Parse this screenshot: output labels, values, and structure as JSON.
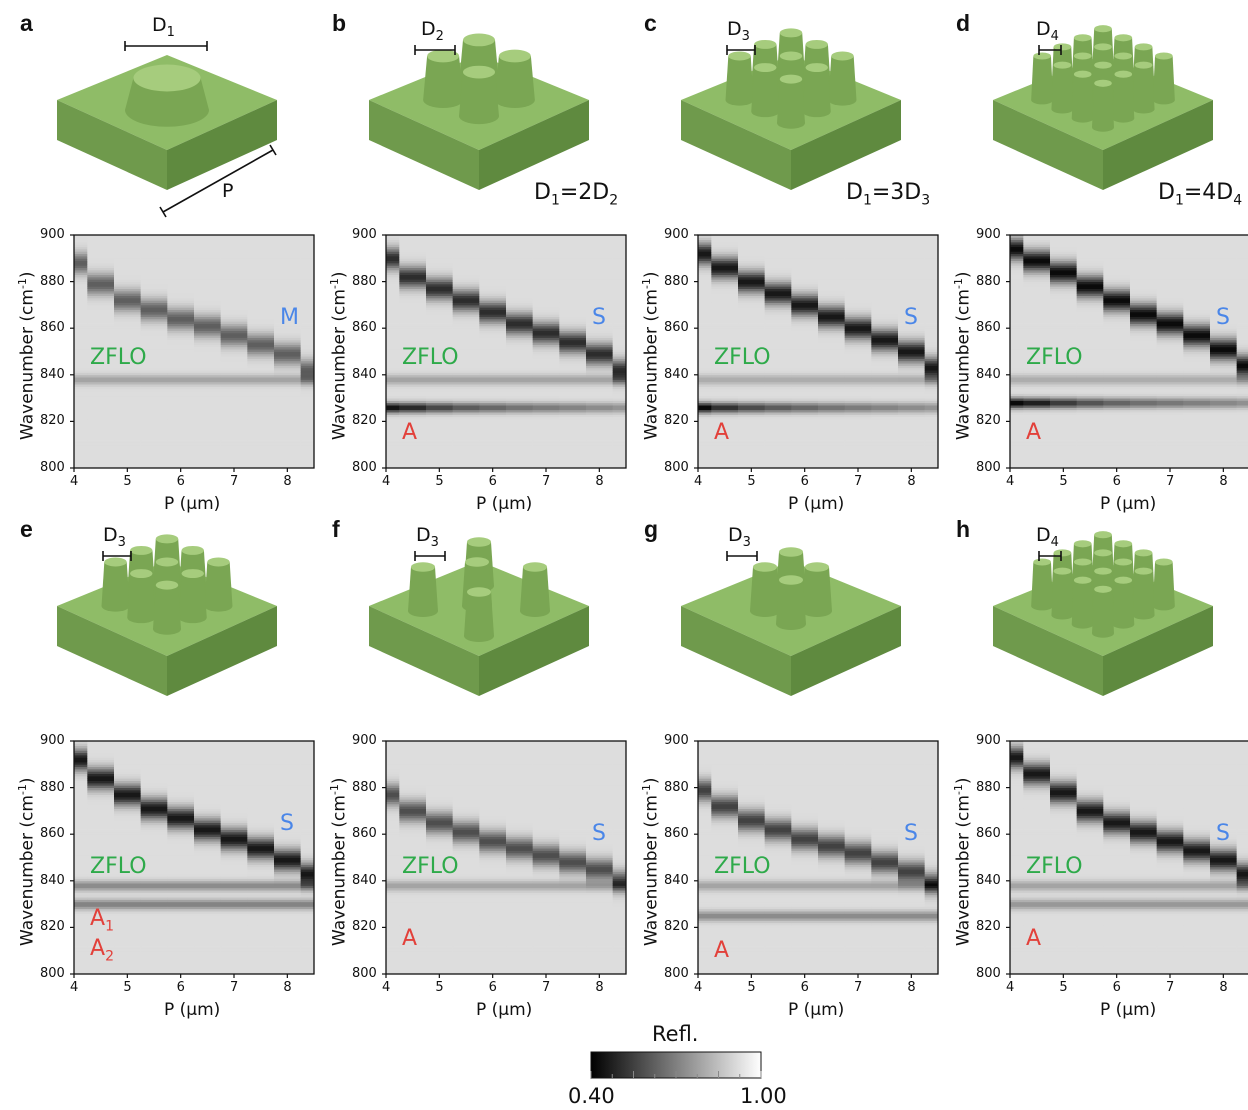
{
  "colors": {
    "substrate": "#7ea55a",
    "pillar": "#8db866",
    "mode_green": "#2eaa4a",
    "mode_red": "#e2403a",
    "mode_blue": "#4a86e8"
  },
  "colorbar": {
    "title": "Refl.",
    "min_label": "0.40",
    "max_label": "1.00",
    "min": 0.4,
    "max": 1.0
  },
  "panels": [
    {
      "letter": "a",
      "d_label": [
        "D",
        "1"
      ],
      "ratio": null,
      "mode_labels": [
        {
          "text": "ZFLO",
          "color": "green"
        },
        {
          "text": "M",
          "color": "blue"
        }
      ]
    },
    {
      "letter": "b",
      "d_label": [
        "D",
        "2"
      ],
      "ratio": [
        "D",
        "1",
        "=2D",
        "2"
      ],
      "mode_labels": [
        {
          "text": "ZFLO",
          "color": "green"
        },
        {
          "text": "S",
          "color": "blue"
        },
        {
          "text": "A",
          "color": "red"
        }
      ]
    },
    {
      "letter": "c",
      "d_label": [
        "D",
        "3"
      ],
      "ratio": [
        "D",
        "1",
        "=3D",
        "3"
      ],
      "mode_labels": [
        {
          "text": "ZFLO",
          "color": "green"
        },
        {
          "text": "S",
          "color": "blue"
        },
        {
          "text": "A",
          "color": "red"
        }
      ]
    },
    {
      "letter": "d",
      "d_label": [
        "D",
        "4"
      ],
      "ratio": [
        "D",
        "1",
        "=4D",
        "4"
      ],
      "mode_labels": [
        {
          "text": "ZFLO",
          "color": "green"
        },
        {
          "text": "S",
          "color": "blue"
        },
        {
          "text": "A",
          "color": "red"
        }
      ]
    },
    {
      "letter": "e",
      "d_label": [
        "D",
        "3"
      ],
      "ratio": null,
      "mode_labels": [
        {
          "text": "ZFLO",
          "color": "green"
        },
        {
          "text": "S",
          "color": "blue"
        },
        {
          "text": "A",
          "sub": "1",
          "color": "red"
        },
        {
          "text": "A",
          "sub": "2",
          "color": "red"
        }
      ]
    },
    {
      "letter": "f",
      "d_label": [
        "D",
        "3"
      ],
      "ratio": null,
      "mode_labels": [
        {
          "text": "ZFLO",
          "color": "green"
        },
        {
          "text": "S",
          "color": "blue"
        },
        {
          "text": "A",
          "color": "red"
        }
      ]
    },
    {
      "letter": "g",
      "d_label": [
        "D",
        "3"
      ],
      "ratio": null,
      "mode_labels": [
        {
          "text": "ZFLO",
          "color": "green"
        },
        {
          "text": "S",
          "color": "blue"
        },
        {
          "text": "A",
          "color": "red"
        }
      ]
    },
    {
      "letter": "h",
      "d_label": [
        "D",
        "4"
      ],
      "ratio": null,
      "mode_labels": [
        {
          "text": "ZFLO",
          "color": "green"
        },
        {
          "text": "S",
          "color": "blue"
        },
        {
          "text": "A",
          "color": "red"
        }
      ]
    }
  ],
  "schematic_a_period_label": "P",
  "chart_data": [
    {
      "panel": "a",
      "type": "heatmap",
      "xlabel": "P (μm)",
      "ylabel": "Wavenumber (cm⁻¹)",
      "xlim": [
        4,
        8.5
      ],
      "ylim": [
        800,
        900
      ],
      "xticks": [
        "4",
        "5",
        "6",
        "7",
        "8"
      ],
      "yticks": [
        "800",
        "820",
        "840",
        "860",
        "880",
        "900"
      ],
      "P": [
        4.0,
        4.5,
        5.0,
        5.5,
        6.0,
        6.5,
        7.0,
        7.5,
        8.0,
        8.5
      ],
      "modes": {
        "surface_M": {
          "wavenumber": [
            888,
            879,
            872,
            868,
            864,
            861,
            857,
            853,
            849,
            842
          ],
          "min_refl": 0.62
        },
        "ZFLO": {
          "wavenumber": 838,
          "min_refl": 0.78
        },
        "A": null
      }
    },
    {
      "panel": "b",
      "type": "heatmap",
      "xlabel": "P (μm)",
      "ylabel": "Wavenumber (cm⁻¹)",
      "xlim": [
        4,
        8.5
      ],
      "ylim": [
        800,
        900
      ],
      "xticks": [
        "4",
        "5",
        "6",
        "7",
        "8"
      ],
      "yticks": [
        "800",
        "820",
        "840",
        "860",
        "880",
        "900"
      ],
      "P": [
        4.0,
        4.5,
        5.0,
        5.5,
        6.0,
        6.5,
        7.0,
        7.5,
        8.0,
        8.5
      ],
      "modes": {
        "surface_S": {
          "wavenumber": [
            890,
            882,
            877,
            872,
            867,
            862,
            858,
            854,
            849,
            842
          ],
          "min_refl": 0.5
        },
        "ZFLO": {
          "wavenumber": 838,
          "min_refl": 0.78
        },
        "A": {
          "wavenumber": 826,
          "min_refl": [
            0.42,
            0.48,
            0.55,
            0.6,
            0.63,
            0.66,
            0.68,
            0.7,
            0.72,
            0.74
          ]
        }
      }
    },
    {
      "panel": "c",
      "type": "heatmap",
      "xlabel": "P (μm)",
      "ylabel": "Wavenumber (cm⁻¹)",
      "xlim": [
        4,
        8.5
      ],
      "ylim": [
        800,
        900
      ],
      "xticks": [
        "4",
        "5",
        "6",
        "7",
        "8"
      ],
      "yticks": [
        "800",
        "820",
        "840",
        "860",
        "880",
        "900"
      ],
      "P": [
        4.0,
        4.5,
        5.0,
        5.5,
        6.0,
        6.5,
        7.0,
        7.5,
        8.0,
        8.5
      ],
      "modes": {
        "surface_S": {
          "wavenumber": [
            892,
            886,
            880,
            875,
            870,
            865,
            860,
            855,
            850,
            843
          ],
          "min_refl": 0.45
        },
        "ZFLO": {
          "wavenumber": 838,
          "min_refl": 0.8
        },
        "A": {
          "wavenumber": 826,
          "min_refl": [
            0.4,
            0.5,
            0.56,
            0.6,
            0.63,
            0.66,
            0.68,
            0.7,
            0.72,
            0.74
          ]
        }
      }
    },
    {
      "panel": "d",
      "type": "heatmap",
      "xlabel": "P (μm)",
      "ylabel": "Wavenumber (cm⁻¹)",
      "xlim": [
        4,
        8.5
      ],
      "ylim": [
        800,
        900
      ],
      "xticks": [
        "4",
        "5",
        "6",
        "7",
        "8"
      ],
      "yticks": [
        "800",
        "820",
        "840",
        "860",
        "880",
        "900"
      ],
      "P": [
        4.0,
        4.5,
        5.0,
        5.5,
        6.0,
        6.5,
        7.0,
        7.5,
        8.0,
        8.5
      ],
      "modes": {
        "surface_S": {
          "wavenumber": [
            894,
            889,
            884,
            878,
            872,
            866,
            862,
            857,
            851,
            844
          ],
          "min_refl": 0.42
        },
        "ZFLO": {
          "wavenumber": 838,
          "min_refl": 0.8
        },
        "A": {
          "wavenumber": 828,
          "min_refl": [
            0.4,
            0.45,
            0.52,
            0.58,
            0.62,
            0.65,
            0.67,
            0.69,
            0.71,
            0.73
          ]
        }
      }
    },
    {
      "panel": "e",
      "type": "heatmap",
      "xlabel": "P (μm)",
      "ylabel": "Wavenumber (cm⁻¹)",
      "xlim": [
        4,
        8.5
      ],
      "ylim": [
        800,
        900
      ],
      "xticks": [
        "4",
        "5",
        "6",
        "7",
        "8"
      ],
      "yticks": [
        "800",
        "820",
        "840",
        "860",
        "880",
        "900"
      ],
      "P": [
        4.0,
        4.5,
        5.0,
        5.5,
        6.0,
        6.5,
        7.0,
        7.5,
        8.0,
        8.5
      ],
      "modes": {
        "surface_S": {
          "wavenumber": [
            892,
            884,
            877,
            871,
            867,
            862,
            858,
            854,
            849,
            843
          ],
          "min_refl": 0.45
        },
        "ZFLO": {
          "wavenumber": 838,
          "min_refl": 0.72
        },
        "A1": {
          "wavenumber": 830,
          "min_refl": 0.7
        },
        "A2": {
          "wavenumber": 812,
          "min_refl": 0.92
        }
      }
    },
    {
      "panel": "f",
      "type": "heatmap",
      "xlabel": "P (μm)",
      "ylabel": "Wavenumber (cm⁻¹)",
      "xlim": [
        4,
        8.5
      ],
      "ylim": [
        800,
        900
      ],
      "xticks": [
        "4",
        "5",
        "6",
        "7",
        "8"
      ],
      "yticks": [
        "800",
        "820",
        "840",
        "860",
        "880",
        "900"
      ],
      "P": [
        4.0,
        4.5,
        5.0,
        5.5,
        6.0,
        6.5,
        7.0,
        7.5,
        8.0,
        8.5
      ],
      "modes": {
        "surface_S": {
          "wavenumber": [
            877,
            870,
            865,
            861,
            857,
            854,
            851,
            848,
            845,
            840
          ],
          "min_refl": 0.58
        },
        "ZFLO": {
          "wavenumber": 838,
          "min_refl": 0.78
        },
        "A": null
      }
    },
    {
      "panel": "g",
      "type": "heatmap",
      "xlabel": "P (μm)",
      "ylabel": "Wavenumber (cm⁻¹)",
      "xlim": [
        4,
        8.5
      ],
      "ylim": [
        800,
        900
      ],
      "xticks": [
        "4",
        "5",
        "6",
        "7",
        "8"
      ],
      "yticks": [
        "800",
        "820",
        "840",
        "860",
        "880",
        "900"
      ],
      "P": [
        4.0,
        4.5,
        5.0,
        5.5,
        6.0,
        6.5,
        7.0,
        7.5,
        8.0,
        8.5
      ],
      "modes": {
        "surface_S": {
          "wavenumber": [
            879,
            872,
            866,
            862,
            858,
            855,
            852,
            848,
            844,
            839
          ],
          "min_refl": 0.55
        },
        "ZFLO": {
          "wavenumber": 838,
          "min_refl": 0.78
        },
        "A": {
          "wavenumber": 825,
          "min_refl": 0.72
        }
      }
    },
    {
      "panel": "h",
      "type": "heatmap",
      "xlabel": "P (μm)",
      "ylabel": "Wavenumber (cm⁻¹)",
      "xlim": [
        4,
        8.5
      ],
      "ylim": [
        800,
        900
      ],
      "xticks": [
        "4",
        "5",
        "6",
        "7",
        "8"
      ],
      "yticks": [
        "800",
        "820",
        "840",
        "860",
        "880",
        "900"
      ],
      "P": [
        4.0,
        4.5,
        5.0,
        5.5,
        6.0,
        6.5,
        7.0,
        7.5,
        8.0,
        8.5
      ],
      "modes": {
        "surface_S": {
          "wavenumber": [
            893,
            886,
            878,
            870,
            865,
            861,
            857,
            853,
            849,
            843
          ],
          "min_refl": 0.45
        },
        "ZFLO": {
          "wavenumber": 838,
          "min_refl": 0.78
        },
        "A": {
          "wavenumber": 830,
          "min_refl": 0.75
        }
      }
    }
  ]
}
